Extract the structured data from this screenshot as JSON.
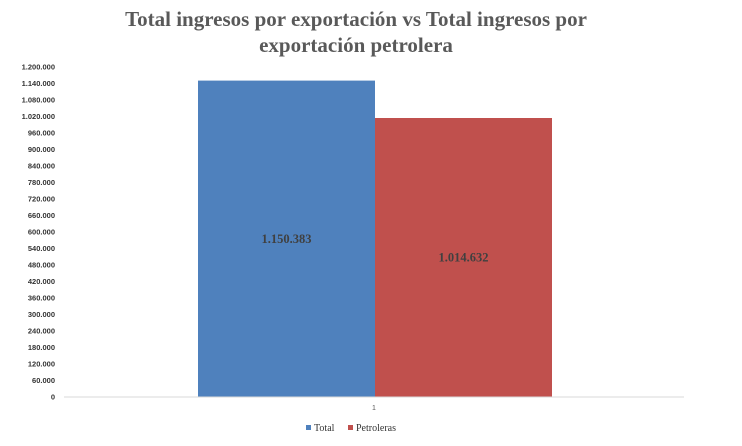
{
  "chart_data": {
    "type": "bar",
    "title_lines": [
      "Total ingresos por exportación vs Total ingresos por",
      "exportación petrolera"
    ],
    "categories": [
      "1"
    ],
    "series": [
      {
        "name": "Total",
        "values": [
          1150383
        ],
        "label": "1.150.383",
        "color": "#4F81BD"
      },
      {
        "name": "Petroleras",
        "values": [
          1014632
        ],
        "label": "1.014.632",
        "color": "#C0504D"
      }
    ],
    "ylim": [
      0,
      1200000
    ],
    "ytick_labels": [
      "0",
      "60.000",
      "120.000",
      "180.000",
      "240.000",
      "300.000",
      "360.000",
      "420.000",
      "480.000",
      "540.000",
      "600.000",
      "660.000",
      "720.000",
      "780.000",
      "840.000",
      "900.000",
      "960.000",
      "1.020.000",
      "1.080.000",
      "1.140.000",
      "1.200.000"
    ],
    "xlabel": "",
    "ylabel": "",
    "grid": false,
    "legend_position": "bottom"
  }
}
